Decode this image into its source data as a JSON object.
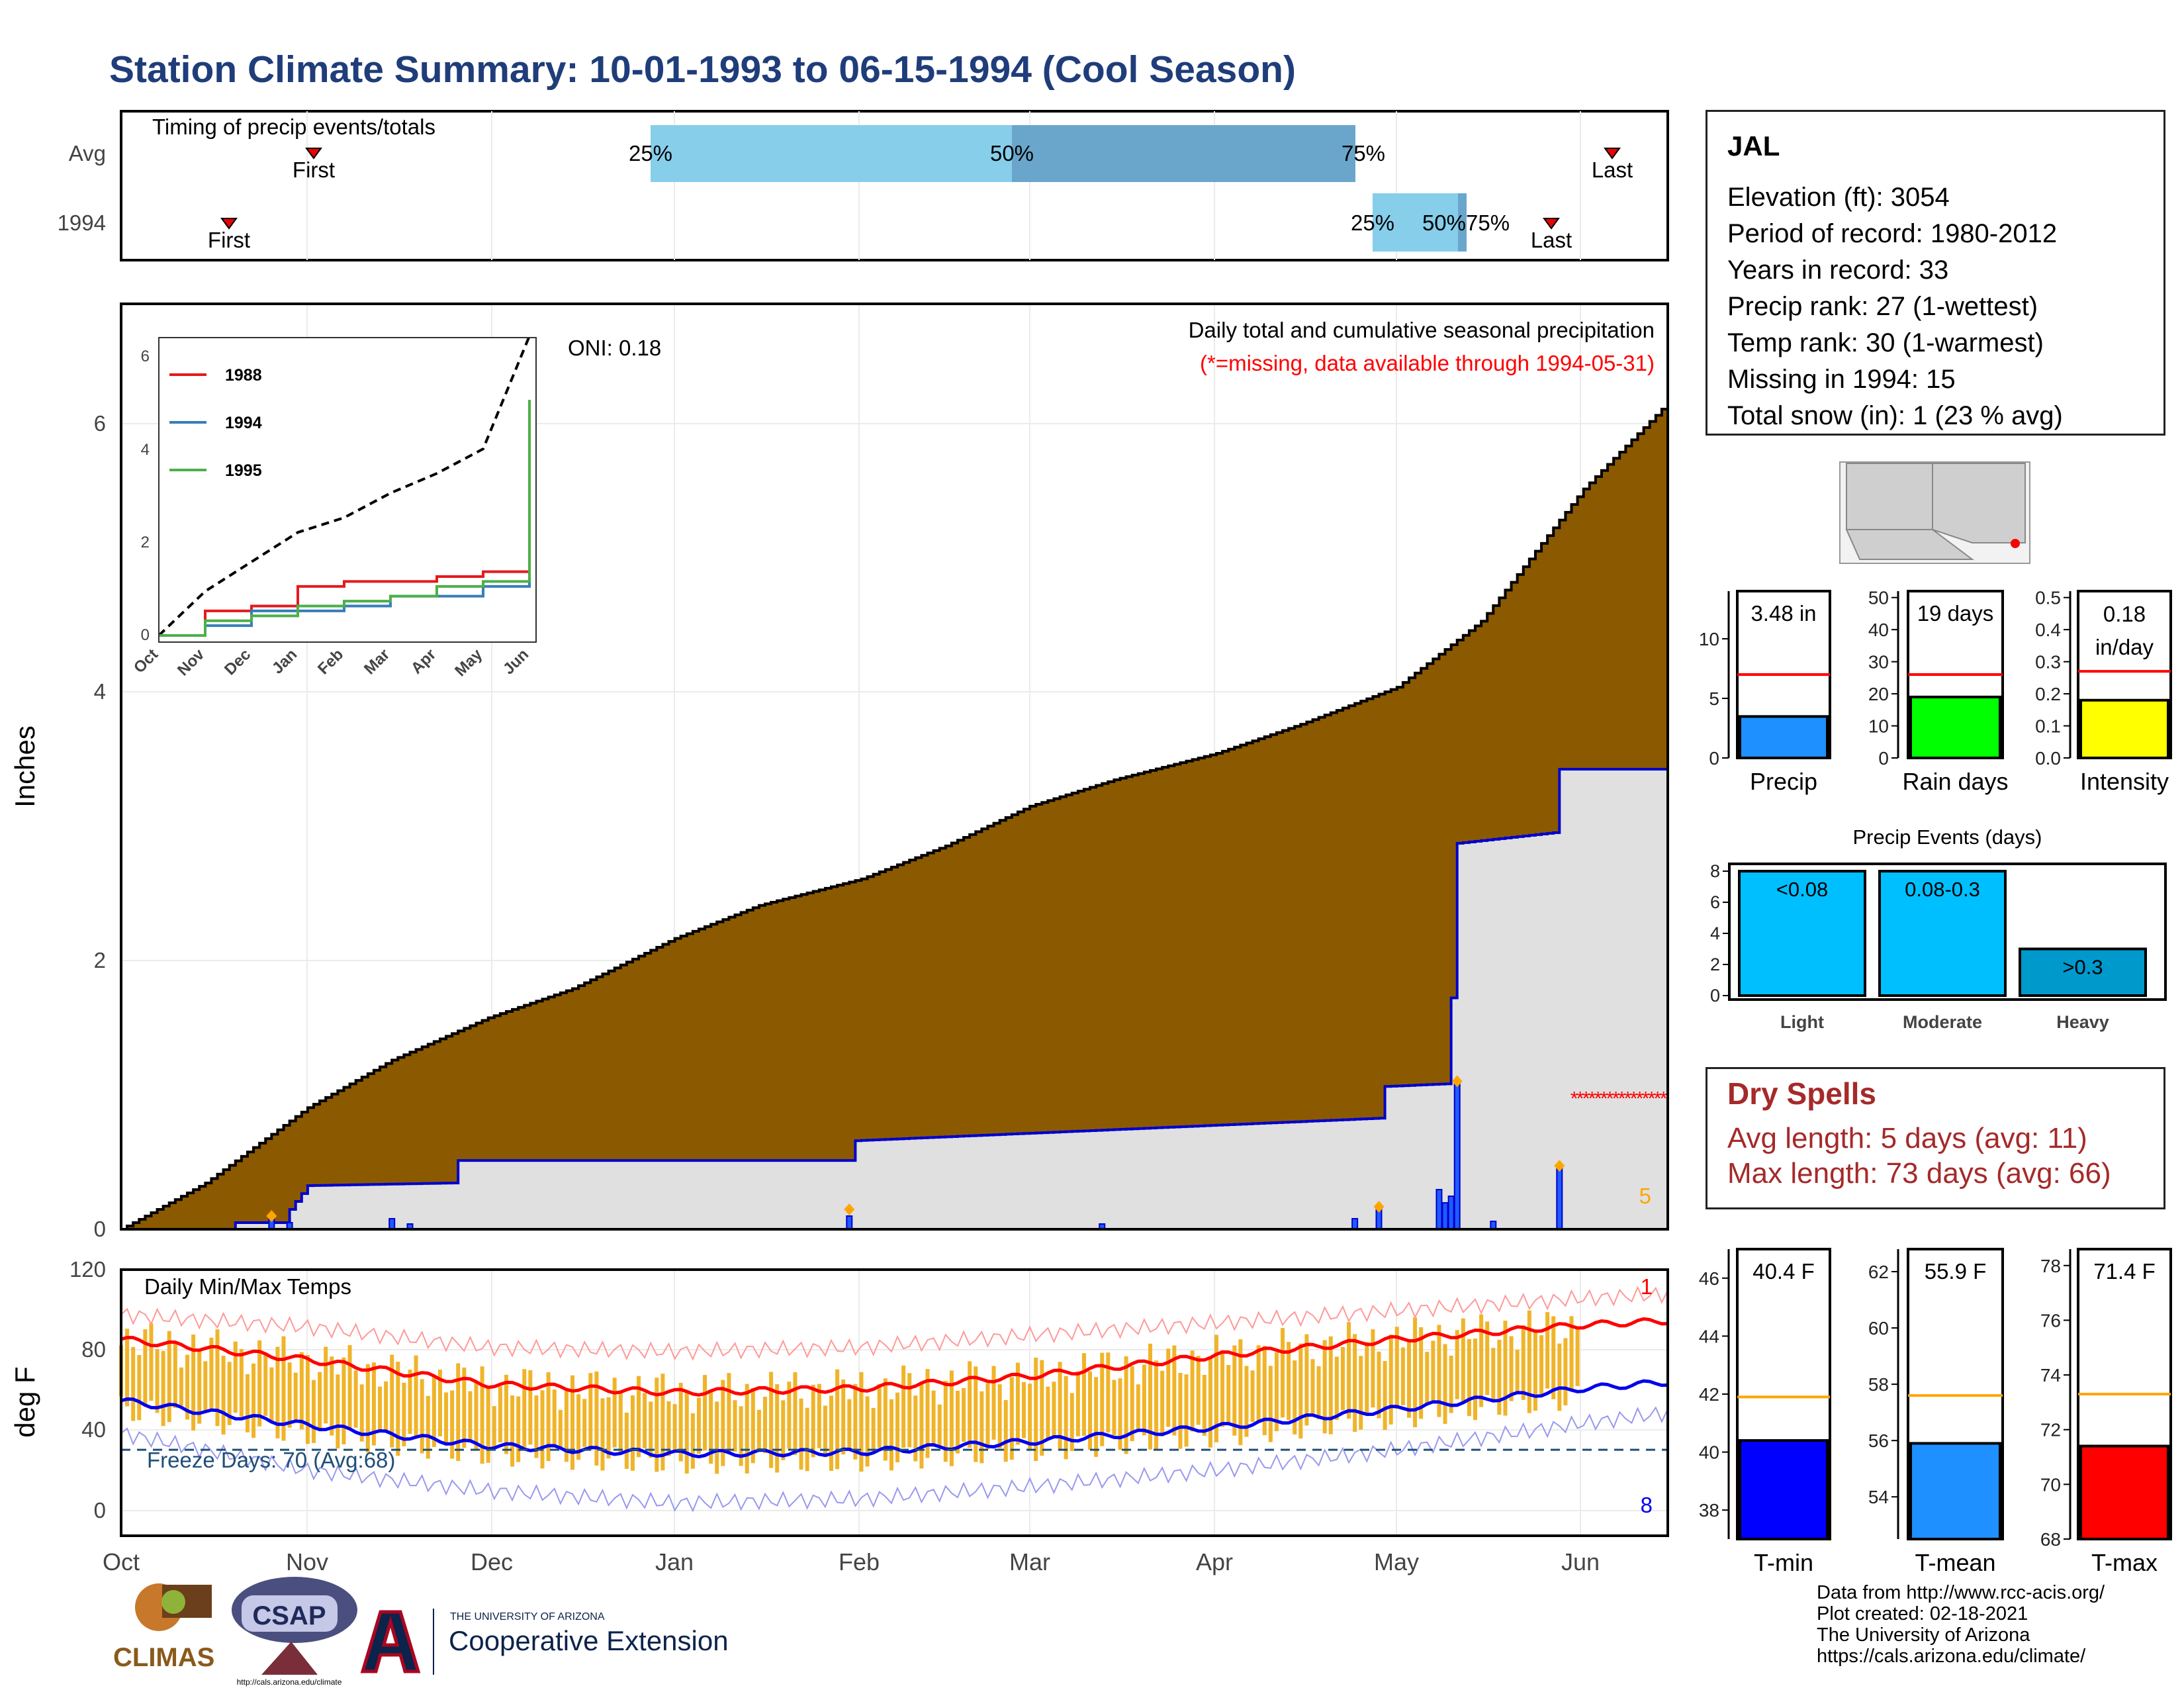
{
  "title": "Station Climate Summary: 10-01-1993 to 06-15-1994 (Cool Season)",
  "colors": {
    "title": "#1f3d7a",
    "cum_fill": "#8b5a00",
    "season_line": "#0000cc",
    "quartile_light": "#87ceeb",
    "quartile_dark": "#6aa6cb",
    "temp_bar": "#f0b429",
    "tmax_line": "#ff0000",
    "tmin_line": "#0000ee",
    "dry_spell": "#a52a2a"
  },
  "timing": {
    "title": "Timing of precip events/totals",
    "rows": [
      "Avg",
      "1994"
    ],
    "labels": {
      "first": "First",
      "last": "Last",
      "p25": "25%",
      "p50": "50%",
      "p75": "75%",
      "row1994_p50_75": "50%75%"
    }
  },
  "station": {
    "name": "JAL",
    "lines": [
      "Elevation (ft): 3054",
      "Period of record: 1980-2012",
      "Years in record: 33",
      "Precip rank: 27 (1-wettest)",
      "Temp rank: 30 (1-warmest)",
      "Missing in 1994: 15",
      "Total snow (in): 1 (23 % avg)"
    ]
  },
  "precip_panel": {
    "title": "Daily total and cumulative seasonal precipitation",
    "missing_note": "(*=missing, data available through 1994-05-31)",
    "oni": "ONI: 0.18",
    "ylabel": "Inches",
    "corner_count": "5",
    "yticks": [
      "0",
      "2",
      "4",
      "6"
    ]
  },
  "inset": {
    "yticks": [
      "0",
      "2",
      "4",
      "6"
    ],
    "months": [
      "Oct",
      "Nov",
      "Dec",
      "Jan",
      "Feb",
      "Mar",
      "Apr",
      "May",
      "Jun"
    ],
    "legend": [
      "1988",
      "1994",
      "1995"
    ]
  },
  "temp_panel": {
    "title": "Daily Min/Max Temps",
    "ylabel": "deg F",
    "freeze": "Freeze Days: 70 (Avg:68)",
    "count_top": "1",
    "count_bottom": "8",
    "yticks": [
      "0",
      "40",
      "80",
      "120"
    ],
    "months": [
      "Oct",
      "Nov",
      "Dec",
      "Jan",
      "Feb",
      "Mar",
      "Apr",
      "May",
      "Jun"
    ]
  },
  "mini_precip": {
    "labels": [
      "Precip",
      "Rain days",
      "Intensity"
    ],
    "values_text": [
      "3.48 in",
      "19 days",
      "0.18 in/day"
    ],
    "yticks": [
      [
        "0",
        "5",
        "10"
      ],
      [
        "0",
        "10",
        "20",
        "30",
        "40",
        "50"
      ],
      [
        "0.0",
        "0.1",
        "0.2",
        "0.3",
        "0.4",
        "0.5"
      ]
    ]
  },
  "events": {
    "title": "Precip Events (days)",
    "categories": [
      "Light",
      "Moderate",
      "Heavy"
    ],
    "labels": [
      "<0.08",
      "0.08-0.3",
      ">0.3"
    ],
    "yticks": [
      "0",
      "2",
      "4",
      "6",
      "8"
    ]
  },
  "dry_spells": {
    "title": "Dry Spells",
    "avg": "Avg length: 5 days (avg: 11)",
    "max": "Max length: 73 days (avg: 66)"
  },
  "temp_bars": {
    "labels": [
      "T-min",
      "T-mean",
      "T-max"
    ],
    "values_text": [
      "40.4 F",
      "55.9 F",
      "71.4 F"
    ],
    "yticks": [
      [
        "38",
        "40",
        "42",
        "44",
        "46"
      ],
      [
        "54",
        "56",
        "58",
        "60",
        "62"
      ],
      [
        "68",
        "70",
        "72",
        "74",
        "76",
        "78"
      ]
    ]
  },
  "credits": [
    "Data from http://www.rcc-acis.org/",
    "Plot created: 02-18-2021",
    "The University of Arizona",
    "https://cals.arizona.edu/climate/"
  ],
  "logos": {
    "climas": "CLIMAS",
    "csap": "CSAP",
    "csap_url": "http://cals.arizona.edu/climate",
    "ua_small": "THE UNIVERSITY OF ARIZONA",
    "coop": "Cooperative Extension"
  },
  "chart_data": [
    {
      "type": "area",
      "title": "Daily total and cumulative seasonal precipitation",
      "ylabel": "Inches",
      "ylim": [
        0,
        7
      ],
      "x_range": [
        "1993-10-01",
        "1994-06-15"
      ],
      "series": [
        {
          "name": "Average cumulative",
          "points": [
            [
              "1993-10-01",
              0.0
            ],
            [
              "1993-10-15",
              0.35
            ],
            [
              "1993-11-01",
              0.92
            ],
            [
              "1993-11-15",
              1.28
            ],
            [
              "1993-12-01",
              1.6
            ],
            [
              "1993-12-15",
              1.82
            ],
            [
              "1994-01-01",
              2.2
            ],
            [
              "1994-01-15",
              2.45
            ],
            [
              "1994-02-01",
              2.65
            ],
            [
              "1994-02-15",
              2.9
            ],
            [
              "1994-03-01",
              3.2
            ],
            [
              "1994-03-15",
              3.4
            ],
            [
              "1994-04-01",
              3.6
            ],
            [
              "1994-04-15",
              3.82
            ],
            [
              "1994-05-01",
              4.1
            ],
            [
              "1994-05-15",
              4.6
            ],
            [
              "1994-06-01",
              5.6
            ],
            [
              "1994-06-15",
              6.25
            ]
          ]
        },
        {
          "name": "1994 cumulative",
          "points": [
            [
              "1993-10-01",
              0.0
            ],
            [
              "1993-10-19",
              0.0
            ],
            [
              "1993-10-20",
              0.05
            ],
            [
              "1993-10-28",
              0.05
            ],
            [
              "1993-10-29",
              0.15
            ],
            [
              "1993-11-01",
              0.33
            ],
            [
              "1993-11-25",
              0.35
            ],
            [
              "1993-11-26",
              0.52
            ],
            [
              "1994-01-30",
              0.52
            ],
            [
              "1994-01-31",
              0.67
            ],
            [
              "1994-04-28",
              0.84
            ],
            [
              "1994-04-29",
              1.08
            ],
            [
              "1994-05-09",
              1.1
            ],
            [
              "1994-05-10",
              1.75
            ],
            [
              "1994-05-11",
              2.92
            ],
            [
              "1994-05-17",
              2.95
            ],
            [
              "1994-05-27",
              3.0
            ],
            [
              "1994-05-28",
              3.48
            ],
            [
              "1994-06-15",
              3.48
            ]
          ]
        }
      ],
      "daily_precip": [
        [
          "1993-10-26",
          0.1
        ],
        [
          "1993-10-29",
          0.05
        ],
        [
          "1993-11-15",
          0.08
        ],
        [
          "1993-11-18",
          0.04
        ],
        [
          "1994-01-30",
          0.1
        ],
        [
          "1994-03-13",
          0.04
        ],
        [
          "1994-04-24",
          0.08
        ],
        [
          "1994-04-28",
          0.15
        ],
        [
          "1994-05-08",
          0.3
        ],
        [
          "1994-05-09",
          0.2
        ],
        [
          "1994-05-10",
          0.25
        ],
        [
          "1994-05-11",
          1.12
        ],
        [
          "1994-05-17",
          0.06
        ],
        [
          "1994-05-28",
          0.48
        ]
      ]
    },
    {
      "type": "line",
      "title": "Inset cumulative precipitation",
      "x": [
        "Oct",
        "Nov",
        "Dec",
        "Jan",
        "Feb",
        "Mar",
        "Apr",
        "May",
        "Jun"
      ],
      "ylim": [
        0,
        6
      ],
      "series": [
        {
          "name": "Average",
          "values": [
            0.0,
            0.9,
            1.5,
            2.1,
            2.4,
            2.9,
            3.3,
            3.8,
            6.1
          ]
        },
        {
          "name": "1988",
          "values": [
            0.0,
            0.5,
            0.6,
            1.0,
            1.1,
            1.1,
            1.2,
            1.3,
            2.1
          ]
        },
        {
          "name": "1994",
          "values": [
            0.0,
            0.2,
            0.5,
            0.5,
            0.6,
            0.8,
            0.8,
            1.0,
            3.5
          ]
        },
        {
          "name": "1995",
          "values": [
            0.0,
            0.3,
            0.4,
            0.6,
            0.7,
            0.8,
            1.0,
            1.1,
            4.8
          ]
        }
      ]
    },
    {
      "type": "line",
      "title": "Daily Min/Max Temps",
      "ylabel": "deg F",
      "ylim": [
        -10,
        120
      ],
      "x": [
        "1993-10-01",
        "1993-11-01",
        "1993-12-01",
        "1994-01-01",
        "1994-02-01",
        "1994-03-01",
        "1994-04-01",
        "1994-05-01",
        "1994-06-01",
        "1994-06-15"
      ],
      "series": [
        {
          "name": "Record high",
          "values": [
            98,
            92,
            82,
            80,
            82,
            88,
            94,
            100,
            106,
            108
          ]
        },
        {
          "name": "Average high",
          "values": [
            86,
            76,
            64,
            60,
            62,
            68,
            78,
            86,
            93,
            95
          ]
        },
        {
          "name": "Average low",
          "values": [
            56,
            44,
            34,
            30,
            31,
            36,
            43,
            52,
            62,
            65
          ]
        },
        {
          "name": "Record low",
          "values": [
            40,
            22,
            12,
            6,
            8,
            14,
            22,
            32,
            45,
            50
          ]
        }
      ],
      "freeze_line": 32
    },
    {
      "type": "bar",
      "title": "Precip",
      "categories": [
        "Precip"
      ],
      "values": [
        3.48
      ],
      "average": 7.0,
      "ylim": [
        0,
        14
      ]
    },
    {
      "type": "bar",
      "title": "Rain days",
      "categories": [
        "Rain days"
      ],
      "values": [
        19
      ],
      "average": 26,
      "ylim": [
        0,
        52
      ]
    },
    {
      "type": "bar",
      "title": "Intensity",
      "categories": [
        "Intensity"
      ],
      "values": [
        0.18
      ],
      "average": 0.27,
      "ylim": [
        0,
        0.52
      ]
    },
    {
      "type": "bar",
      "title": "Precip Events (days)",
      "categories": [
        "Light",
        "Moderate",
        "Heavy"
      ],
      "values": [
        8,
        8,
        3
      ],
      "ylim": [
        0,
        8.3
      ]
    },
    {
      "type": "bar",
      "title": "T-min",
      "categories": [
        "T-min"
      ],
      "values": [
        40.4
      ],
      "average": 41.9,
      "ylim": [
        37,
        47
      ]
    },
    {
      "type": "bar",
      "title": "T-mean",
      "categories": [
        "T-mean"
      ],
      "values": [
        55.9
      ],
      "average": 57.6,
      "ylim": [
        52.5,
        62.8
      ]
    },
    {
      "type": "bar",
      "title": "T-max",
      "categories": [
        "T-max"
      ],
      "values": [
        71.4
      ],
      "average": 73.3,
      "ylim": [
        68,
        78.6
      ]
    }
  ]
}
